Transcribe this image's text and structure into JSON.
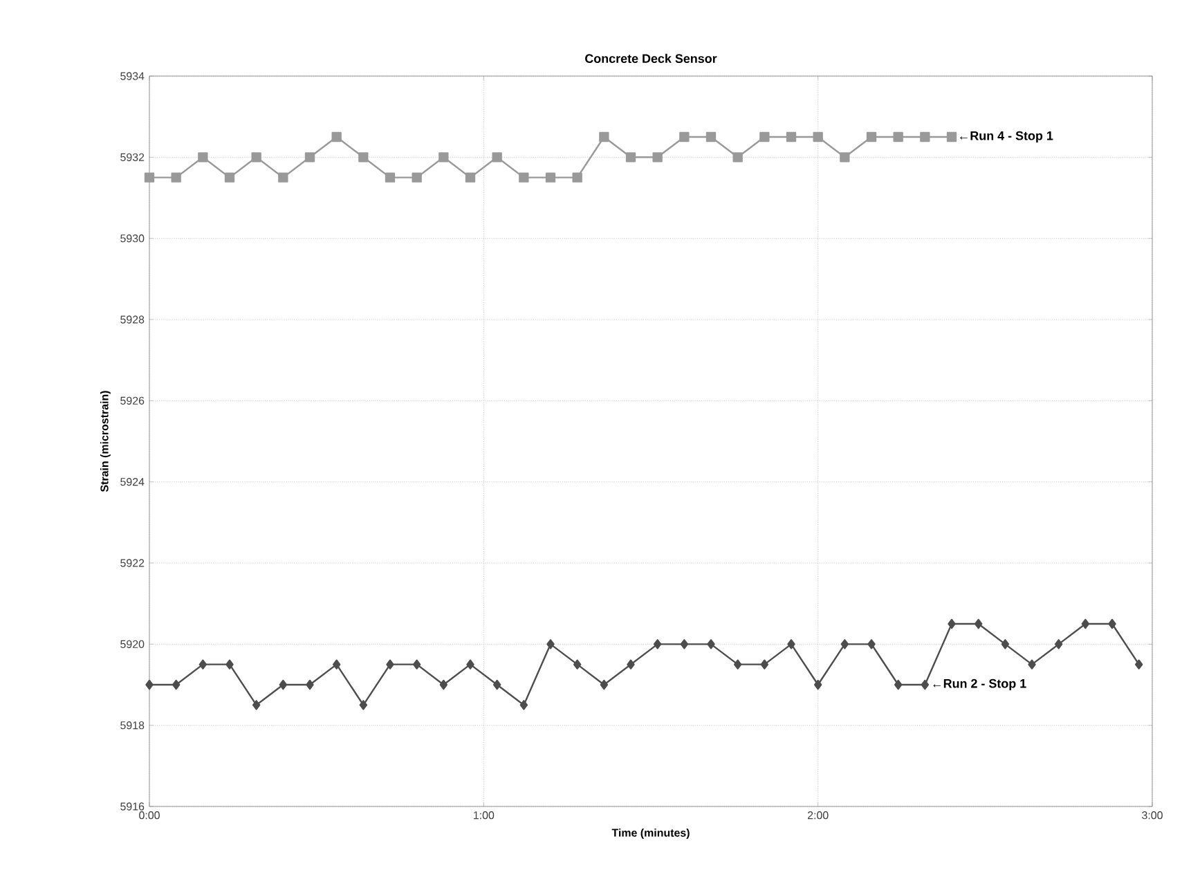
{
  "chart_data": {
    "type": "line",
    "title": "Concrete Deck Sensor",
    "xlabel": "Time (minutes)",
    "ylabel": "Strain (microstrain)",
    "xlim": [
      0,
      3
    ],
    "xticks": [
      {
        "value": 0,
        "label": "0:00"
      },
      {
        "value": 1,
        "label": "1:00"
      },
      {
        "value": 2,
        "label": "2:00"
      },
      {
        "value": 3,
        "label": "3:00"
      }
    ],
    "ylim": [
      5916,
      5934
    ],
    "yticks": [
      5916,
      5918,
      5920,
      5922,
      5924,
      5926,
      5928,
      5930,
      5932,
      5934
    ],
    "grid": true,
    "series": [
      {
        "color": "#999999",
        "marker": "square",
        "x": [
          0,
          0.08,
          0.16,
          0.24,
          0.32,
          0.4,
          0.48,
          0.56,
          0.64,
          0.72,
          0.8,
          0.88,
          0.96,
          1.04,
          1.12,
          1.2,
          1.28,
          1.36,
          1.44,
          1.52,
          1.6,
          1.68,
          1.76,
          1.84,
          1.92,
          2.0,
          2.08,
          2.16,
          2.24,
          2.32,
          2.4
        ],
        "values": [
          5931.5,
          5931.5,
          5932,
          5931.5,
          5932,
          5931.5,
          5932,
          5932.5,
          5932,
          5931.5,
          5931.5,
          5932,
          5931.5,
          5932,
          5931.5,
          5931.5,
          5931.5,
          5932.5,
          5932,
          5932,
          5932.5,
          5932.5,
          5932,
          5932.5,
          5932.5,
          5932.5,
          5932,
          5932.5,
          5932.5,
          5932.5,
          5932.5
        ]
      },
      {
        "color": "#4d4d4d",
        "marker": "diamond",
        "x": [
          0,
          0.08,
          0.16,
          0.24,
          0.32,
          0.4,
          0.48,
          0.56,
          0.64,
          0.72,
          0.8,
          0.88,
          0.96,
          1.04,
          1.12,
          1.2,
          1.28,
          1.36,
          1.44,
          1.52,
          1.6,
          1.68,
          1.76,
          1.84,
          1.92,
          2.0,
          2.08,
          2.16,
          2.24,
          2.32,
          2.4,
          2.48,
          2.56,
          2.64,
          2.72,
          2.8,
          2.88,
          2.96
        ],
        "values": [
          5919,
          5919,
          5919.5,
          5919.5,
          5918.5,
          5919,
          5919,
          5919.5,
          5918.5,
          5919.5,
          5919.5,
          5919,
          5919.5,
          5919,
          5918.5,
          5920,
          5919.5,
          5919,
          5919.5,
          5920,
          5920,
          5920,
          5919.5,
          5919.5,
          5920,
          5919,
          5920,
          5920,
          5919,
          5919,
          5920.5,
          5920.5,
          5920,
          5919.5,
          5920,
          5920.5,
          5920.5,
          5919.5
        ]
      }
    ],
    "annotations": [
      {
        "text": "←Run 4 - Stop 1",
        "x": 2.4,
        "y": 5932.5
      },
      {
        "text": "←Run 2 - Stop 1",
        "x": 2.32,
        "y": 5919
      }
    ]
  }
}
